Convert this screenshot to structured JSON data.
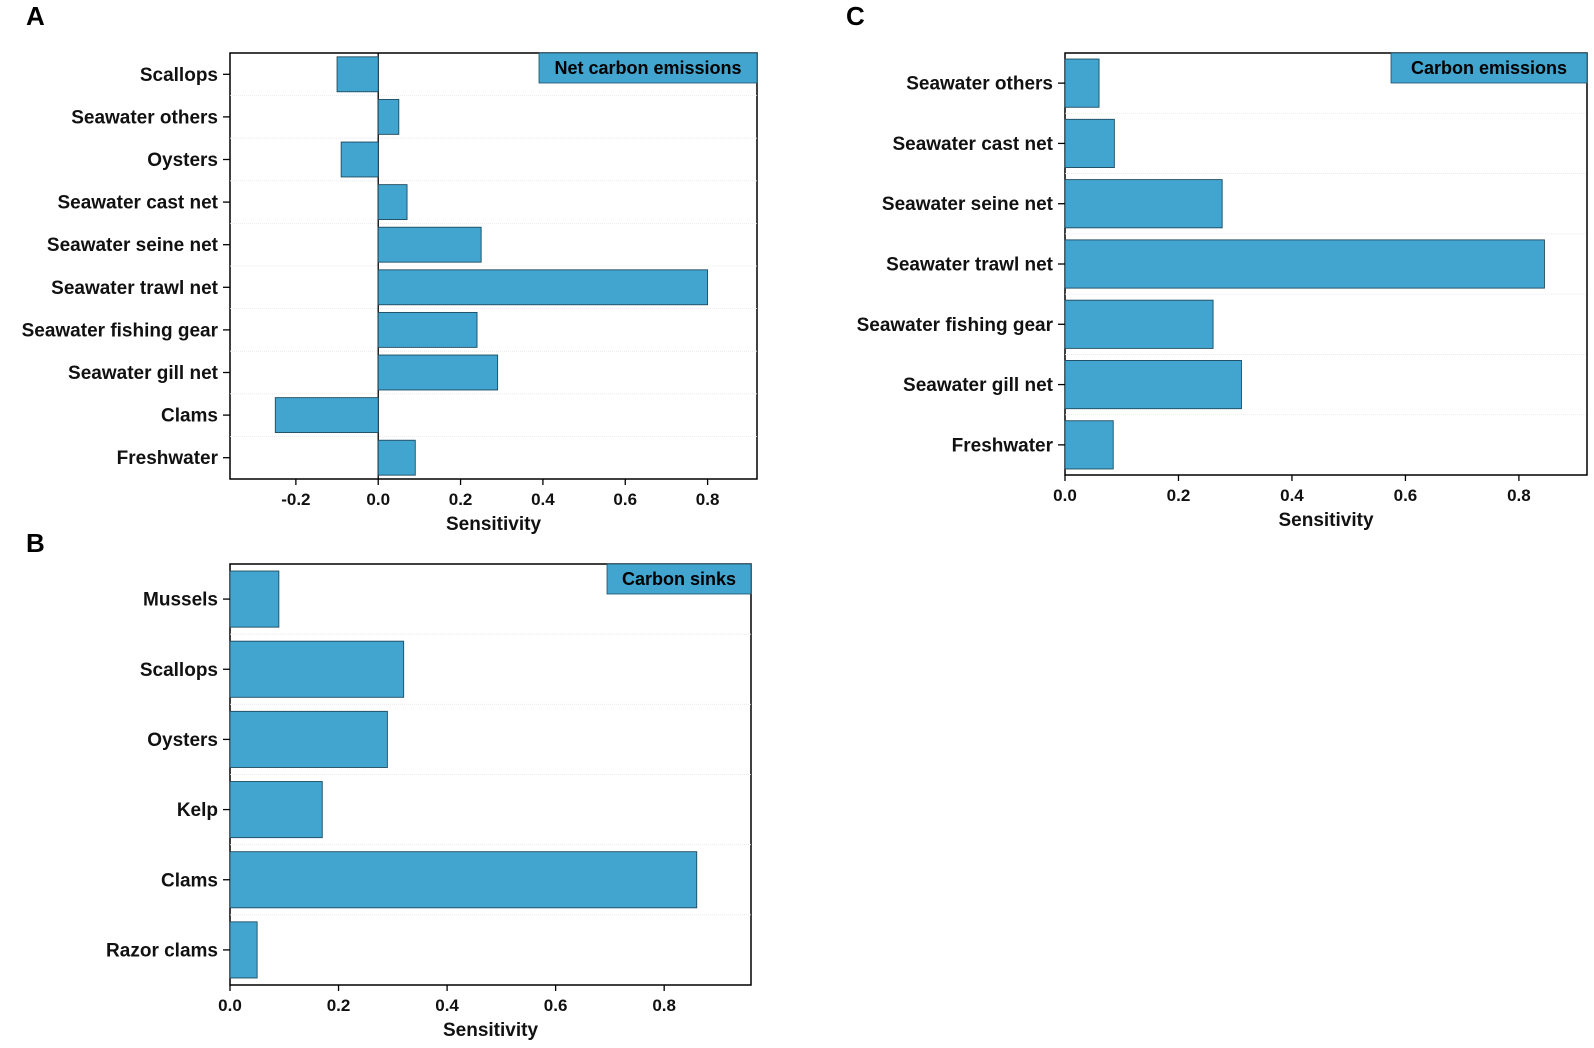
{
  "chart_data": [
    {
      "panel": "A",
      "type": "bar",
      "orientation": "horizontal",
      "legend_label": "Net carbon emissions",
      "legend_position": "top-right",
      "categories": [
        "Scallops",
        "Seawater others",
        "Oysters",
        "Seawater cast net",
        "Seawater seine net",
        "Seawater trawl net",
        "Seawater fishing gear",
        "Seawater gill net",
        "Clams",
        "Freshwater"
      ],
      "values": [
        -0.1,
        0.05,
        -0.09,
        0.07,
        0.25,
        0.8,
        0.24,
        0.29,
        -0.25,
        0.09
      ],
      "xlabel": "Sensitivity",
      "ylabel": "",
      "xlim": [
        -0.36,
        0.92
      ],
      "xticks": [
        -0.2,
        0.0,
        0.2,
        0.4,
        0.6,
        0.8
      ],
      "xtick_labels": [
        "-0.2",
        "0.0",
        "0.2",
        "0.4",
        "0.6",
        "0.8"
      ],
      "bar_color": "#41a5d0"
    },
    {
      "panel": "B",
      "type": "bar",
      "orientation": "horizontal",
      "legend_label": "Carbon sinks",
      "legend_position": "top-right",
      "categories": [
        "Mussels",
        "Scallops",
        "Oysters",
        "Kelp",
        "Clams",
        "Razor clams"
      ],
      "values": [
        0.09,
        0.32,
        0.29,
        0.17,
        0.86,
        0.05
      ],
      "xlabel": "Sensitivity",
      "ylabel": "",
      "xlim": [
        0,
        0.96
      ],
      "xticks": [
        0.0,
        0.2,
        0.4,
        0.6,
        0.8
      ],
      "xtick_labels": [
        "0.0",
        "0.2",
        "0.4",
        "0.6",
        "0.8"
      ],
      "bar_color": "#41a5d0"
    },
    {
      "panel": "C",
      "type": "bar",
      "orientation": "horizontal",
      "legend_label": "Carbon emissions",
      "legend_position": "top-right",
      "categories": [
        "Seawater others",
        "Seawater cast net",
        "Seawater seine net",
        "Seawater trawl net",
        "Seawater fishing gear",
        "Seawater gill net",
        "Freshwater"
      ],
      "values": [
        0.06,
        0.087,
        0.277,
        0.845,
        0.261,
        0.311,
        0.085
      ],
      "xlabel": "Sensitivity",
      "ylabel": "",
      "xlim": [
        0,
        0.92
      ],
      "xticks": [
        0.0,
        0.2,
        0.4,
        0.6,
        0.8
      ],
      "xtick_labels": [
        "0.0",
        "0.2",
        "0.4",
        "0.6",
        "0.8"
      ],
      "bar_color": "#41a5d0"
    }
  ]
}
